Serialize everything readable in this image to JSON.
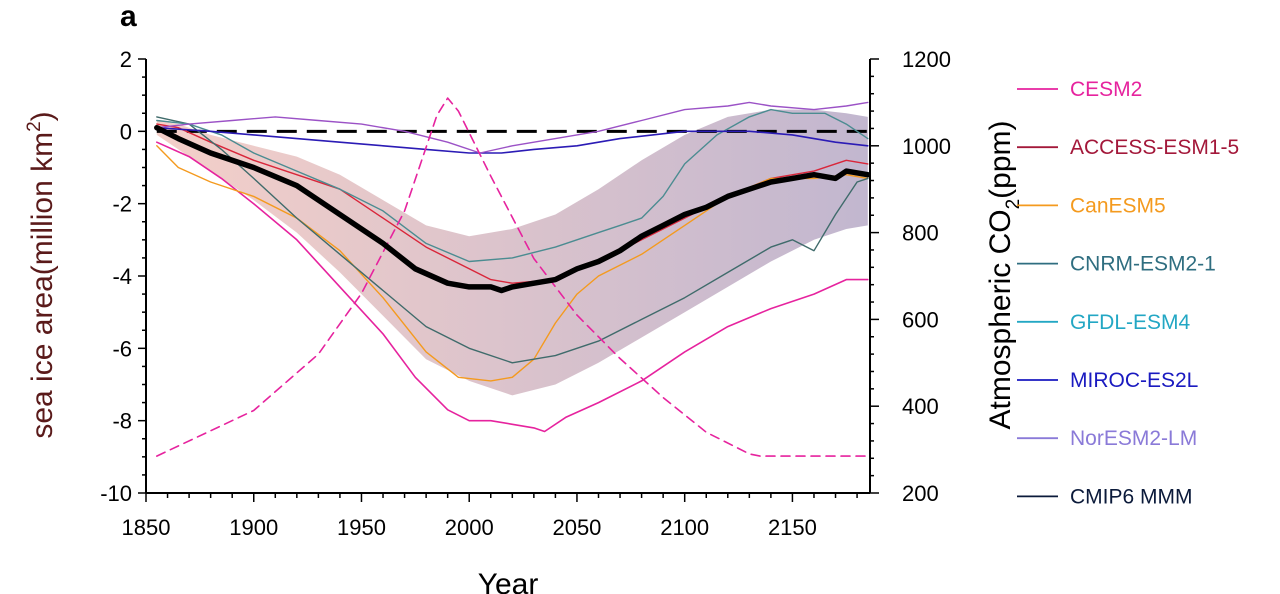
{
  "chart_data": {
    "type": "line",
    "panel_label": "a",
    "xlabel": "Year",
    "ylabel": "sea ice area(million km",
    "ylabel_sup": "2",
    "ylabel_end": ")",
    "y2label": "Atmospheric CO",
    "y2label_sub": "2",
    "y2label_end": "(ppm)",
    "xlim": [
      1850,
      2186
    ],
    "ylim": [
      -10,
      2
    ],
    "y2lim": [
      200,
      1200
    ],
    "xticks": [
      1850,
      1900,
      1950,
      2000,
      2050,
      2100,
      2150
    ],
    "xtick_labels": [
      "1850",
      "1900",
      "1950",
      "2000",
      "2050",
      "2100",
      "2150"
    ],
    "yticks": [
      2,
      0,
      -2,
      -4,
      -6,
      -8,
      -10
    ],
    "ytick_labels": [
      "2",
      "0",
      "-2",
      "-4",
      "-6",
      "-8",
      "-10"
    ],
    "y2ticks": [
      1200,
      1000,
      800,
      600,
      400,
      200
    ],
    "y2tick_labels": [
      "1200",
      "1000",
      "800",
      "600",
      "400",
      "200"
    ],
    "reference_line": {
      "y": 0,
      "style": "dashed",
      "color": "#000000"
    },
    "spread_band": {
      "name": "MMM spread",
      "color": "#b9a2b7",
      "x": [
        1855,
        1865,
        1880,
        1900,
        1920,
        1940,
        1960,
        1980,
        2000,
        2020,
        2040,
        2060,
        2080,
        2100,
        2120,
        2140,
        2160,
        2175,
        2185
      ],
      "upper": [
        0.3,
        0.2,
        -0.1,
        -0.4,
        -0.7,
        -1.2,
        -1.9,
        -2.6,
        -2.9,
        -2.7,
        -2.3,
        -1.6,
        -0.8,
        -0.1,
        0.4,
        0.6,
        0.6,
        0.5,
        0.4
      ],
      "lower": [
        -0.1,
        -0.5,
        -1.1,
        -1.9,
        -2.8,
        -3.9,
        -5.1,
        -6.3,
        -6.9,
        -7.3,
        -7.0,
        -6.4,
        -5.7,
        -5.0,
        -4.3,
        -3.6,
        -3.0,
        -2.7,
        -2.6
      ]
    },
    "series": [
      {
        "name": "CESM2",
        "color": "#e6239e",
        "width": 1.6,
        "x": [
          1855,
          1870,
          1885,
          1900,
          1920,
          1940,
          1960,
          1975,
          1990,
          2000,
          2010,
          2020,
          2030,
          2035,
          2045,
          2060,
          2080,
          2100,
          2120,
          2140,
          2160,
          2175,
          2185
        ],
        "values": [
          -0.3,
          -0.7,
          -1.3,
          -2.0,
          -3.0,
          -4.3,
          -5.6,
          -6.8,
          -7.7,
          -8.0,
          -8.0,
          -8.1,
          -8.2,
          -8.3,
          -7.9,
          -7.5,
          -6.9,
          -6.1,
          -5.4,
          -4.9,
          -4.5,
          -4.1,
          -4.1
        ]
      },
      {
        "name": "ACCESS-ESM1-5",
        "color": "#d9263a",
        "width": 1.4,
        "x": [
          1855,
          1865,
          1880,
          1900,
          1920,
          1940,
          1960,
          1980,
          2000,
          2010,
          2020,
          2040,
          2060,
          2080,
          2100,
          2120,
          2140,
          2160,
          2175,
          2185
        ],
        "values": [
          0.2,
          0.1,
          -0.3,
          -0.8,
          -1.2,
          -1.6,
          -2.4,
          -3.2,
          -3.8,
          -4.1,
          -4.2,
          -4.1,
          -3.6,
          -3.0,
          -2.4,
          -1.8,
          -1.3,
          -1.1,
          -0.8,
          -0.9
        ]
      },
      {
        "name": "CanESM5",
        "color": "#f49a1e",
        "width": 1.4,
        "x": [
          1855,
          1865,
          1880,
          1900,
          1920,
          1940,
          1960,
          1980,
          1995,
          2010,
          2020,
          2030,
          2040,
          2050,
          2060,
          2080,
          2100,
          2120,
          2140,
          2160,
          2175,
          2185
        ],
        "values": [
          -0.4,
          -1.0,
          -1.4,
          -1.8,
          -2.4,
          -3.3,
          -4.6,
          -6.1,
          -6.8,
          -6.9,
          -6.8,
          -6.3,
          -5.3,
          -4.5,
          -4.0,
          -3.4,
          -2.6,
          -1.8,
          -1.3,
          -1.3,
          -1.2,
          -1.3
        ]
      },
      {
        "name": "CNRM-ESM2-1",
        "color": "#3f6b6b",
        "width": 1.4,
        "x": [
          1855,
          1870,
          1885,
          1900,
          1920,
          1940,
          1960,
          1980,
          2000,
          2020,
          2040,
          2060,
          2080,
          2100,
          2120,
          2140,
          2150,
          2160,
          2170,
          2180,
          2185
        ],
        "values": [
          0.4,
          0.2,
          -0.5,
          -1.3,
          -2.4,
          -3.4,
          -4.4,
          -5.4,
          -6.0,
          -6.4,
          -6.2,
          -5.8,
          -5.2,
          -4.6,
          -3.9,
          -3.2,
          -3.0,
          -3.3,
          -2.3,
          -1.4,
          -1.3
        ]
      },
      {
        "name": "GFDL-ESM4",
        "color": "#4b8c91",
        "width": 1.4,
        "x": [
          1855,
          1870,
          1885,
          1900,
          1920,
          1940,
          1960,
          1980,
          2000,
          2020,
          2040,
          2060,
          2070,
          2080,
          2090,
          2100,
          2115,
          2130,
          2140,
          2150,
          2165,
          2175,
          2185
        ],
        "values": [
          0.3,
          0.2,
          -0.1,
          -0.6,
          -1.1,
          -1.6,
          -2.2,
          -3.1,
          -3.6,
          -3.5,
          -3.2,
          -2.8,
          -2.6,
          -2.4,
          -1.8,
          -0.9,
          -0.1,
          0.4,
          0.6,
          0.5,
          0.5,
          0.2,
          -0.2
        ]
      },
      {
        "name": "MIROC-ES2L",
        "color": "#2b1bb5",
        "width": 1.6,
        "x": [
          1855,
          1880,
          1900,
          1920,
          1940,
          1960,
          1980,
          2000,
          2015,
          2030,
          2050,
          2070,
          2100,
          2130,
          2150,
          2170,
          2185
        ],
        "values": [
          0.1,
          0.0,
          -0.1,
          -0.2,
          -0.3,
          -0.4,
          -0.5,
          -0.6,
          -0.6,
          -0.5,
          -0.4,
          -0.2,
          0.0,
          0.0,
          -0.1,
          -0.3,
          -0.4
        ]
      },
      {
        "name": "NorESM2-LM",
        "color": "#9b52c6",
        "width": 1.4,
        "x": [
          1855,
          1870,
          1890,
          1910,
          1930,
          1950,
          1970,
          1990,
          2005,
          2020,
          2040,
          2060,
          2080,
          2100,
          2120,
          2130,
          2140,
          2160,
          2175,
          2185
        ],
        "values": [
          0.1,
          0.2,
          0.3,
          0.4,
          0.3,
          0.2,
          0.0,
          -0.3,
          -0.6,
          -0.4,
          -0.2,
          0.0,
          0.3,
          0.6,
          0.7,
          0.8,
          0.7,
          0.6,
          0.7,
          0.8
        ]
      },
      {
        "name": "CMIP6 MMM",
        "color": "#000000",
        "width": 5.5,
        "x": [
          1855,
          1865,
          1880,
          1900,
          1920,
          1940,
          1960,
          1975,
          1990,
          2000,
          2010,
          2015,
          2020,
          2030,
          2040,
          2050,
          2060,
          2070,
          2080,
          2090,
          2100,
          2110,
          2120,
          2130,
          2140,
          2150,
          2160,
          2170,
          2175,
          2185
        ],
        "values": [
          0.1,
          -0.2,
          -0.6,
          -1.0,
          -1.5,
          -2.3,
          -3.1,
          -3.8,
          -4.2,
          -4.3,
          -4.3,
          -4.4,
          -4.3,
          -4.2,
          -4.1,
          -3.8,
          -3.6,
          -3.3,
          -2.9,
          -2.6,
          -2.3,
          -2.1,
          -1.8,
          -1.6,
          -1.4,
          -1.3,
          -1.2,
          -1.3,
          -1.1,
          -1.2
        ]
      },
      {
        "name": "CO2 concentration",
        "color": "#e6239e",
        "width": 1.6,
        "dash": "dashed",
        "axis": "y2",
        "x": [
          1855,
          1900,
          1930,
          1950,
          1970,
          1985,
          1990,
          1995,
          2010,
          2030,
          2050,
          2070,
          2090,
          2110,
          2130,
          2135,
          2150,
          2185
        ],
        "values": [
          285,
          390,
          520,
          660,
          850,
          1070,
          1110,
          1080,
          930,
          740,
          610,
          510,
          420,
          340,
          290,
          285,
          285,
          285
        ]
      }
    ],
    "legend": {
      "position": "right",
      "items": [
        {
          "label": "CESM2",
          "color": "#e6239e",
          "text_color": "#e6239e"
        },
        {
          "label": "ACCESS-ESM1-5",
          "color": "#a3183a",
          "text_color": "#a3183a"
        },
        {
          "label": "CanESM5",
          "color": "#f49a1e",
          "text_color": "#f49a1e"
        },
        {
          "label": "CNRM-ESM2-1",
          "color": "#2f6e80",
          "text_color": "#2f6e80"
        },
        {
          "label": "GFDL-ESM4",
          "color": "#23a7c4",
          "text_color": "#23a7c4"
        },
        {
          "label": "MIROC-ES2L",
          "color": "#1a1ac0",
          "text_color": "#1a1ac0"
        },
        {
          "label": "NorESM2-LM",
          "color": "#8a7ad8",
          "text_color": "#8a7ad8"
        },
        {
          "label": "CMIP6 MMM",
          "color": "#0b1a3a",
          "text_color": "#0b1a3a"
        }
      ]
    },
    "ylabel_color": "#5a1a1a",
    "y2label_color": "#000000"
  }
}
